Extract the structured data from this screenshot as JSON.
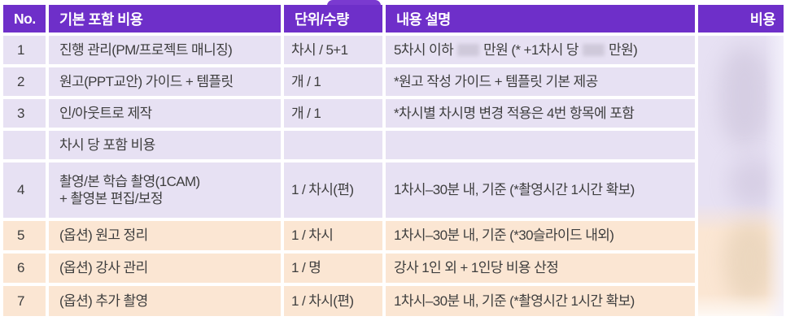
{
  "table": {
    "accent_color": "#6e2fc9",
    "included_row_color": "#e7e1f3",
    "option_row_color": "#fbe6d3",
    "headers": {
      "no": "No.",
      "item": "기본 포함 비용",
      "unit": "단위/수량",
      "desc": "내용 설명",
      "cost": "비용"
    },
    "cost_column": {
      "redacted": true
    },
    "rows": [
      {
        "no": "1",
        "item": "진행 관리(PM/프로젝트 매니징)",
        "unit": "차시 / 5+1",
        "desc_parts": [
          "5차시 이하",
          "만원 (* +1차시 당",
          "만원)"
        ],
        "redacted_values": 2
      },
      {
        "no": "2",
        "item": "원고(PPT교안) 가이드 + 템플릿",
        "unit": "개 / 1",
        "desc": "*원고 작성 가이드 + 템플릿 기본 제공"
      },
      {
        "no": "3",
        "item": "인/아웃트로 제작",
        "unit": "개 / 1",
        "desc": "*차시별 차시명 변경 적용은 4번 항목에 포함"
      },
      {
        "no": "",
        "item": "차시 당 포함 비용",
        "unit": "",
        "desc": ""
      },
      {
        "no": "4",
        "item": "촬영/본 학습 촬영(1CAM)",
        "item_line2": "+ 촬영본 편집/보정",
        "unit": "1 / 차시(편)",
        "desc": "1차시–30분 내, 기준 (*촬영시간 1시간 확보)"
      },
      {
        "no": "5",
        "item": "(옵션) 원고 정리",
        "unit": "1 / 차시",
        "desc": "1차시–30분 내, 기준 (*30슬라이드 내외)"
      },
      {
        "no": "6",
        "item": "(옵션) 강사 관리",
        "unit": "1 / 명",
        "desc": "강사 1인 외 + 1인당 비용 산정"
      },
      {
        "no": "7",
        "item": "(옵션) 추가 촬영",
        "unit": "1 / 차시(편)",
        "desc": "1차시–30분 내, 기준 (*촬영시간 1시간 확보)"
      }
    ]
  }
}
